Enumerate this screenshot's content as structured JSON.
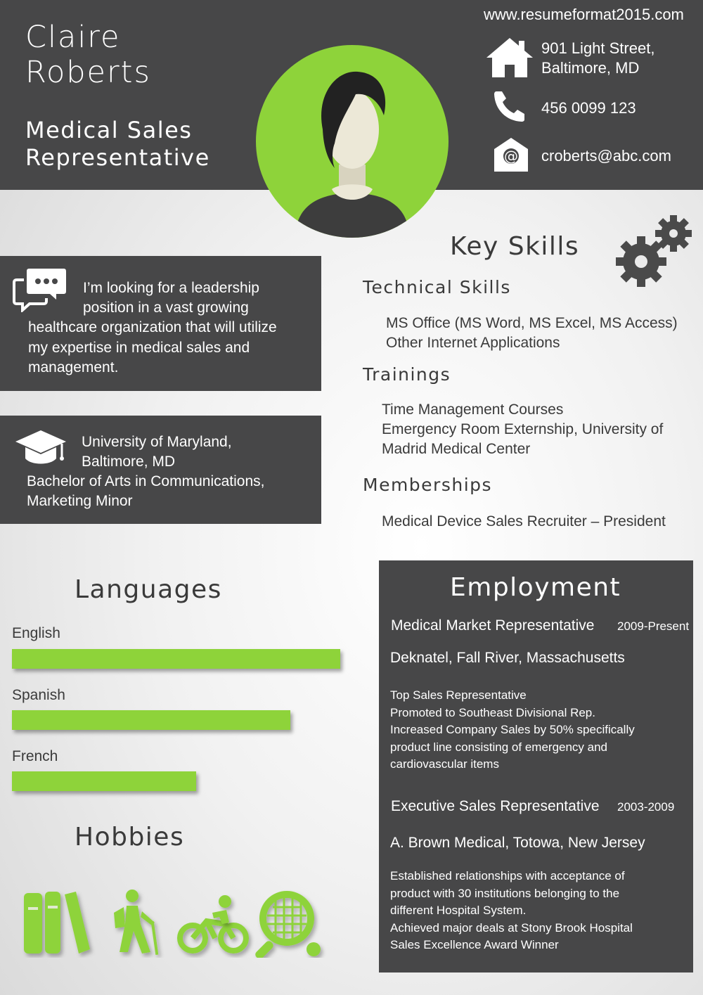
{
  "header": {
    "first_name": "Claire",
    "last_name": "Roberts",
    "title_line1": "Medical Sales",
    "title_line2": "Representative",
    "website": "www.resumeformat2015.com"
  },
  "contact": {
    "address_line1": "901 Light Street,",
    "address_line2": "Baltimore, MD",
    "phone": "456 0099 123",
    "email": "croberts@abc.com"
  },
  "objective": {
    "line1": "I’m looking for a leadership",
    "line2": "position in a vast growing",
    "line3": "healthcare organization that will utilize",
    "line4": "my expertise in medical sales and",
    "line5": "management."
  },
  "education": {
    "line1": "University of Maryland,",
    "line2": "Baltimore, MD",
    "line3": "Bachelor of Arts in Communications,",
    "line4": "Marketing Minor"
  },
  "key_skills": {
    "heading": "Key Skills",
    "technical_heading": "Technical Skills",
    "technical": [
      "MS Office (MS Word, MS Excel, MS Access)",
      "Other Internet Applications"
    ],
    "trainings_heading": "Trainings",
    "trainings": [
      "Time Management Courses",
      "Emergency Room Externship, University of",
      "Madrid Medical Center"
    ],
    "memberships_heading": "Memberships",
    "memberships": [
      "Medical Device Sales Recruiter – President"
    ]
  },
  "languages": {
    "heading": "Languages",
    "items": [
      {
        "name": "English",
        "level": 1.0
      },
      {
        "name": "Spanish",
        "level": 0.847
      },
      {
        "name": "French",
        "level": 0.561
      }
    ]
  },
  "hobbies": {
    "heading": "Hobbies",
    "icons": [
      "books-icon",
      "hiking-icon",
      "cycling-icon",
      "tennis-icon"
    ]
  },
  "employment": {
    "heading": "Employment",
    "jobs": [
      {
        "role": "Medical Market Representative",
        "years": "2009-Present",
        "company": "Deknatel, Fall River, Massachusetts",
        "desc": [
          "Top Sales Representative",
          "Promoted to Southeast Divisional Rep.",
          "Increased Company Sales by 50% specifically",
          "product line consisting of emergency and",
          "cardiovascular items"
        ]
      },
      {
        "role": "Executive Sales Representative",
        "years": "2003-2009",
        "company": "A. Brown Medical, Totowa, New Jersey",
        "desc": [
          "Established relationships with acceptance of",
          "product with 30 institutions belonging to the",
          "different Hospital System.",
          "Achieved major deals at Stony Brook Hospital",
          "Sales Excellence Award Winner"
        ]
      }
    ]
  },
  "colors": {
    "dark": "#474748",
    "accent": "#8ed33a"
  }
}
